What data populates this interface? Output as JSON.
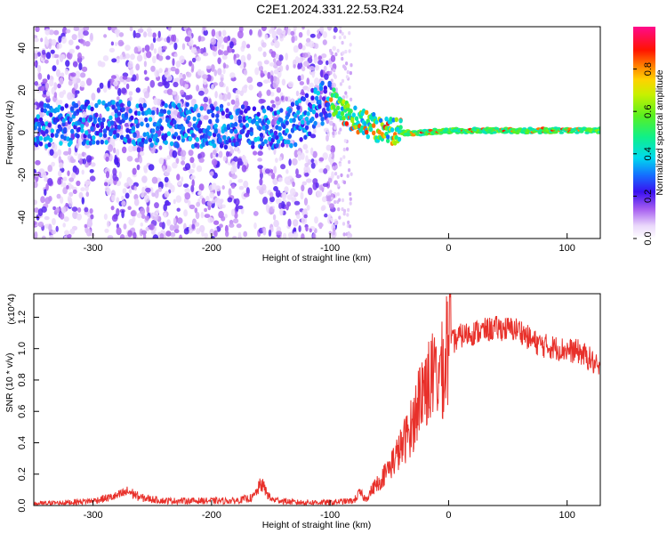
{
  "title": "C2E1.2024.331.22.53.R24",
  "chart_data": [
    {
      "type": "heatmap",
      "xlabel": "Height of straight line (km)",
      "ylabel": "Frequency (Hz)",
      "xlim": [
        -350,
        128
      ],
      "ylim": [
        -50,
        50
      ],
      "xticks": [
        -300,
        -200,
        -100,
        0,
        100
      ],
      "yticks": [
        -40,
        -20,
        0,
        20,
        40
      ],
      "colorbar": {
        "label": "Normalized spectral amplitude",
        "range": [
          0,
          1
        ],
        "ticks": [
          "0.0",
          "0.2",
          "0.4",
          "0.6",
          "0.8"
        ],
        "tick_values": [
          0,
          0.2,
          0.4,
          0.6,
          0.8
        ],
        "colormap": "rainbow (white-violet-blue-cyan-green-yellow-red-magenta)"
      },
      "ridge": [
        {
          "x": -345,
          "y": 3
        },
        {
          "x": -300,
          "y": 5
        },
        {
          "x": -250,
          "y": 4
        },
        {
          "x": -200,
          "y": 3
        },
        {
          "x": -160,
          "y": 2
        },
        {
          "x": -130,
          "y": 4
        },
        {
          "x": -100,
          "y": 16
        },
        {
          "x": -85,
          "y": 8
        },
        {
          "x": -60,
          "y": 2
        },
        {
          "x": -40,
          "y": 0
        },
        {
          "x": -20,
          "y": 0
        },
        {
          "x": 0,
          "y": 1
        },
        {
          "x": 50,
          "y": 1
        },
        {
          "x": 128,
          "y": 1
        }
      ],
      "grid": false
    },
    {
      "type": "line",
      "xlabel": "Height of straight line (km)",
      "ylabel": "SNR (10 * v/v)",
      "y_multiplier": "(x10^4)",
      "xlim": [
        -350,
        128
      ],
      "ylim": [
        0,
        1.35
      ],
      "xticks": [
        -300,
        -200,
        -100,
        0,
        100
      ],
      "yticks": [
        "0.0",
        "0.2",
        "0.4",
        "0.6",
        "0.8",
        "1.0",
        "1.2"
      ],
      "ytick_values": [
        0,
        0.2,
        0.4,
        0.6,
        0.8,
        1.0,
        1.2
      ],
      "series": [
        {
          "color": "#e8302a",
          "x": [
            -350,
            -320,
            -300,
            -280,
            -270,
            -260,
            -240,
            -220,
            -200,
            -180,
            -165,
            -158,
            -150,
            -130,
            -110,
            -100,
            -80,
            -75,
            -70,
            -60,
            -50,
            -40,
            -30,
            -25,
            -20,
            -10,
            0,
            10,
            20,
            40,
            60,
            70,
            80,
            100,
            110,
            120,
            128
          ],
          "y": [
            0.01,
            0.02,
            0.03,
            0.06,
            0.09,
            0.05,
            0.03,
            0.03,
            0.03,
            0.03,
            0.05,
            0.14,
            0.04,
            0.02,
            0.02,
            0.02,
            0.03,
            0.08,
            0.04,
            0.15,
            0.28,
            0.42,
            0.6,
            0.78,
            0.88,
            0.95,
            1.02,
            1.08,
            1.1,
            1.13,
            1.12,
            1.05,
            1.02,
            0.99,
            0.98,
            0.93,
            0.85
          ]
        }
      ],
      "grid": false
    }
  ]
}
